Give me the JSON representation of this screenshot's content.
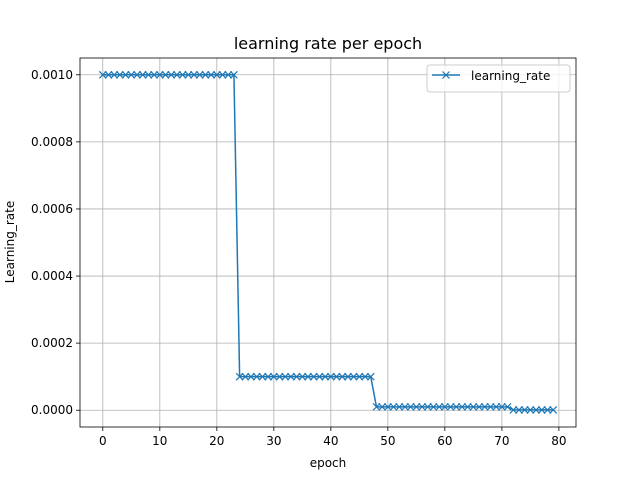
{
  "chart_data": {
    "type": "line",
    "title": "learning rate per epoch",
    "xlabel": "epoch",
    "ylabel": "Learning_rate",
    "xlim": [
      -4,
      83
    ],
    "ylim": [
      -5e-05,
      0.00105
    ],
    "x_ticks": [
      0,
      10,
      20,
      30,
      40,
      50,
      60,
      70,
      80
    ],
    "x_tick_labels": [
      "0",
      "10",
      "20",
      "30",
      "40",
      "50",
      "60",
      "70",
      "80"
    ],
    "y_ticks": [
      0.0,
      0.0002,
      0.0004,
      0.0006,
      0.0008,
      0.001
    ],
    "y_tick_labels": [
      "0.0000",
      "0.0002",
      "0.0004",
      "0.0006",
      "0.0008",
      "0.0010"
    ],
    "grid": true,
    "legend_position": "top-right",
    "series": [
      {
        "name": "learning_rate",
        "color": "#1f77b4",
        "marker": "x",
        "x": [
          0,
          1,
          2,
          3,
          4,
          5,
          6,
          7,
          8,
          9,
          10,
          11,
          12,
          13,
          14,
          15,
          16,
          17,
          18,
          19,
          20,
          21,
          22,
          23,
          24,
          25,
          26,
          27,
          28,
          29,
          30,
          31,
          32,
          33,
          34,
          35,
          36,
          37,
          38,
          39,
          40,
          41,
          42,
          43,
          44,
          45,
          46,
          47,
          48,
          49,
          50,
          51,
          52,
          53,
          54,
          55,
          56,
          57,
          58,
          59,
          60,
          61,
          62,
          63,
          64,
          65,
          66,
          67,
          68,
          69,
          70,
          71,
          72,
          73,
          74,
          75,
          76,
          77,
          78,
          79
        ],
        "y": [
          0.001,
          0.001,
          0.001,
          0.001,
          0.001,
          0.001,
          0.001,
          0.001,
          0.001,
          0.001,
          0.001,
          0.001,
          0.001,
          0.001,
          0.001,
          0.001,
          0.001,
          0.001,
          0.001,
          0.001,
          0.001,
          0.001,
          0.001,
          0.001,
          0.0001,
          0.0001,
          0.0001,
          0.0001,
          0.0001,
          0.0001,
          0.0001,
          0.0001,
          0.0001,
          0.0001,
          0.0001,
          0.0001,
          0.0001,
          0.0001,
          0.0001,
          0.0001,
          0.0001,
          0.0001,
          0.0001,
          0.0001,
          0.0001,
          0.0001,
          0.0001,
          0.0001,
          1e-05,
          1e-05,
          1e-05,
          1e-05,
          1e-05,
          1e-05,
          1e-05,
          1e-05,
          1e-05,
          1e-05,
          1e-05,
          1e-05,
          1e-05,
          1e-05,
          1e-05,
          1e-05,
          1e-05,
          1e-05,
          1e-05,
          1e-05,
          1e-05,
          1e-05,
          1e-05,
          1e-05,
          1e-06,
          1e-06,
          1e-06,
          1e-06,
          1e-06,
          1e-06,
          1e-06,
          1e-06
        ]
      }
    ]
  }
}
